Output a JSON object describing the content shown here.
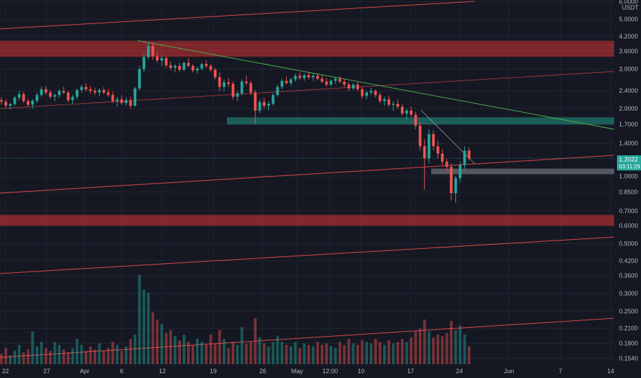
{
  "chart_data": {
    "type": "candlestick",
    "currency_label": "USDT",
    "scale": "log",
    "ylim": [
      0.145,
      6.1
    ],
    "y_ticks": [
      "6.0000",
      "5.0000",
      "4.2000",
      "3.6000",
      "3.0000",
      "2.4000",
      "2.0000",
      "1.7000",
      "1.4000",
      "1.0000",
      "0.8500",
      "0.7000",
      "0.6000",
      "0.5000",
      "0.4200",
      "0.3600",
      "0.3000",
      "0.2500",
      "0.2100",
      "0.1800",
      "0.1540"
    ],
    "x_ticks": [
      "22",
      "27",
      "Apr",
      "6",
      "12",
      "19",
      "26",
      "May",
      "12:00",
      "10",
      "17",
      "24",
      "Jun",
      "7",
      "14"
    ],
    "last_price": "1.2022",
    "countdown": "03:11:29",
    "colors": {
      "up": "#26a69a",
      "down": "#ef5350",
      "resistance_zone": "#b22b2b",
      "support_zone": "#1f6b63",
      "trendline_red": "#e04848",
      "trendline_green": "#4caf50",
      "grey_zone": "#8a8d95"
    },
    "candles": [
      [
        2.18,
        2.25,
        2.08,
        2.15
      ],
      [
        2.15,
        2.2,
        2.02,
        2.06
      ],
      [
        2.06,
        2.12,
        1.98,
        2.1
      ],
      [
        2.1,
        2.28,
        2.05,
        2.24
      ],
      [
        2.24,
        2.4,
        2.18,
        2.32
      ],
      [
        2.32,
        2.38,
        2.12,
        2.16
      ],
      [
        2.16,
        2.22,
        2.04,
        2.08
      ],
      [
        2.08,
        2.2,
        2.0,
        2.17
      ],
      [
        2.17,
        2.36,
        2.12,
        2.3
      ],
      [
        2.3,
        2.5,
        2.26,
        2.44
      ],
      [
        2.44,
        2.52,
        2.3,
        2.36
      ],
      [
        2.36,
        2.42,
        2.22,
        2.26
      ],
      [
        2.26,
        2.34,
        2.16,
        2.3
      ],
      [
        2.3,
        2.44,
        2.24,
        2.4
      ],
      [
        2.4,
        2.5,
        2.32,
        2.36
      ],
      [
        2.36,
        2.4,
        2.14,
        2.18
      ],
      [
        2.18,
        2.3,
        2.1,
        2.26
      ],
      [
        2.26,
        2.46,
        2.2,
        2.42
      ],
      [
        2.42,
        2.56,
        2.36,
        2.5
      ],
      [
        2.5,
        2.6,
        2.38,
        2.44
      ],
      [
        2.44,
        2.52,
        2.34,
        2.4
      ],
      [
        2.4,
        2.48,
        2.3,
        2.36
      ],
      [
        2.36,
        2.46,
        2.28,
        2.42
      ],
      [
        2.42,
        2.5,
        2.32,
        2.36
      ],
      [
        2.36,
        2.44,
        2.26,
        2.3
      ],
      [
        2.3,
        2.38,
        2.12,
        2.16
      ],
      [
        2.16,
        2.26,
        2.04,
        2.2
      ],
      [
        2.2,
        2.3,
        2.08,
        2.12
      ],
      [
        2.12,
        2.24,
        2.06,
        2.18
      ],
      [
        2.18,
        2.26,
        2.0,
        2.06
      ],
      [
        2.06,
        2.5,
        2.04,
        2.46
      ],
      [
        2.46,
        3.1,
        2.42,
        3.0
      ],
      [
        3.0,
        3.5,
        2.9,
        3.4
      ],
      [
        3.4,
        3.95,
        3.3,
        3.8
      ],
      [
        3.8,
        3.92,
        3.3,
        3.42
      ],
      [
        3.42,
        3.6,
        3.2,
        3.28
      ],
      [
        3.28,
        3.46,
        3.1,
        3.36
      ],
      [
        3.36,
        3.42,
        3.04,
        3.12
      ],
      [
        3.12,
        3.24,
        2.96,
        3.04
      ],
      [
        3.04,
        3.16,
        2.9,
        3.1
      ],
      [
        3.1,
        3.2,
        2.92,
        2.98
      ],
      [
        2.98,
        3.24,
        2.94,
        3.2
      ],
      [
        3.2,
        3.36,
        3.06,
        3.1
      ],
      [
        3.1,
        3.16,
        2.9,
        2.96
      ],
      [
        2.96,
        3.08,
        2.86,
        3.02
      ],
      [
        3.02,
        3.2,
        2.96,
        3.16
      ],
      [
        3.16,
        3.28,
        3.04,
        3.1
      ],
      [
        3.1,
        3.16,
        2.92,
        2.98
      ],
      [
        2.98,
        3.04,
        2.7,
        2.76
      ],
      [
        2.76,
        2.9,
        2.4,
        2.5
      ],
      [
        2.5,
        2.7,
        2.4,
        2.62
      ],
      [
        2.62,
        2.74,
        2.5,
        2.58
      ],
      [
        2.58,
        2.64,
        2.2,
        2.26
      ],
      [
        2.26,
        2.4,
        2.16,
        2.34
      ],
      [
        2.34,
        2.7,
        2.3,
        2.64
      ],
      [
        2.64,
        2.8,
        2.54,
        2.6
      ],
      [
        2.6,
        2.66,
        2.3,
        2.36
      ],
      [
        2.36,
        2.42,
        1.72,
        1.96
      ],
      [
        1.96,
        2.2,
        1.9,
        2.14
      ],
      [
        2.14,
        2.24,
        2.0,
        2.06
      ],
      [
        2.06,
        2.16,
        1.96,
        2.1
      ],
      [
        2.1,
        2.34,
        2.06,
        2.3
      ],
      [
        2.3,
        2.56,
        2.26,
        2.5
      ],
      [
        2.5,
        2.72,
        2.44,
        2.66
      ],
      [
        2.66,
        2.78,
        2.56,
        2.6
      ],
      [
        2.6,
        2.74,
        2.52,
        2.7
      ],
      [
        2.7,
        2.86,
        2.64,
        2.8
      ],
      [
        2.8,
        2.9,
        2.68,
        2.74
      ],
      [
        2.74,
        2.86,
        2.66,
        2.82
      ],
      [
        2.82,
        2.9,
        2.7,
        2.76
      ],
      [
        2.76,
        2.86,
        2.66,
        2.8
      ],
      [
        2.8,
        2.88,
        2.68,
        2.72
      ],
      [
        2.72,
        2.82,
        2.6,
        2.64
      ],
      [
        2.64,
        2.74,
        2.5,
        2.56
      ],
      [
        2.56,
        2.7,
        2.52,
        2.66
      ],
      [
        2.66,
        2.78,
        2.58,
        2.72
      ],
      [
        2.72,
        2.8,
        2.6,
        2.64
      ],
      [
        2.64,
        2.72,
        2.5,
        2.56
      ],
      [
        2.56,
        2.62,
        2.4,
        2.46
      ],
      [
        2.46,
        2.6,
        2.42,
        2.56
      ],
      [
        2.56,
        2.64,
        2.4,
        2.44
      ],
      [
        2.44,
        2.5,
        2.22,
        2.28
      ],
      [
        2.28,
        2.4,
        2.2,
        2.36
      ],
      [
        2.36,
        2.48,
        2.3,
        2.4
      ],
      [
        2.4,
        2.44,
        2.24,
        2.3
      ],
      [
        2.3,
        2.36,
        2.12,
        2.16
      ],
      [
        2.16,
        2.26,
        2.06,
        2.2
      ],
      [
        2.2,
        2.28,
        2.04,
        2.08
      ],
      [
        2.08,
        2.16,
        1.96,
        2.1
      ],
      [
        2.1,
        2.2,
        2.0,
        2.04
      ],
      [
        2.04,
        2.1,
        1.86,
        1.9
      ],
      [
        1.9,
        2.0,
        1.78,
        1.96
      ],
      [
        1.96,
        2.04,
        1.84,
        1.88
      ],
      [
        1.88,
        1.94,
        1.62,
        1.68
      ],
      [
        1.68,
        1.74,
        1.3,
        1.36
      ],
      [
        1.36,
        1.46,
        0.87,
        1.2
      ],
      [
        1.2,
        1.62,
        1.14,
        1.54
      ],
      [
        1.54,
        1.6,
        1.3,
        1.36
      ],
      [
        1.36,
        1.44,
        1.2,
        1.26
      ],
      [
        1.26,
        1.32,
        1.12,
        1.16
      ],
      [
        1.16,
        1.2,
        1.06,
        1.1
      ],
      [
        1.1,
        1.14,
        0.78,
        0.84
      ],
      [
        0.84,
        1.0,
        0.76,
        0.98
      ],
      [
        0.98,
        1.16,
        0.94,
        1.12
      ],
      [
        1.12,
        1.36,
        1.08,
        1.3
      ],
      [
        1.3,
        1.34,
        1.18,
        1.2
      ]
    ],
    "volume": [
      14,
      22,
      12,
      18,
      26,
      16,
      20,
      44,
      24,
      30,
      22,
      18,
      30,
      26,
      20,
      16,
      22,
      34,
      26,
      18,
      24,
      20,
      28,
      18,
      22,
      30,
      26,
      18,
      24,
      34,
      40,
      120,
      100,
      96,
      70,
      60,
      54,
      42,
      46,
      38,
      32,
      40,
      30,
      26,
      34,
      30,
      26,
      40,
      28,
      46,
      34,
      22,
      30,
      26,
      50,
      28,
      30,
      62,
      36,
      28,
      24,
      30,
      38,
      30,
      26,
      24,
      30,
      22,
      28,
      26,
      24,
      30,
      26,
      28,
      24,
      22,
      30,
      26,
      34,
      28,
      26,
      32,
      30,
      28,
      34,
      30,
      26,
      32,
      28,
      30,
      34,
      30,
      36,
      44,
      48,
      60,
      44,
      36,
      40,
      38,
      42,
      58,
      46,
      52,
      40,
      24
    ]
  }
}
